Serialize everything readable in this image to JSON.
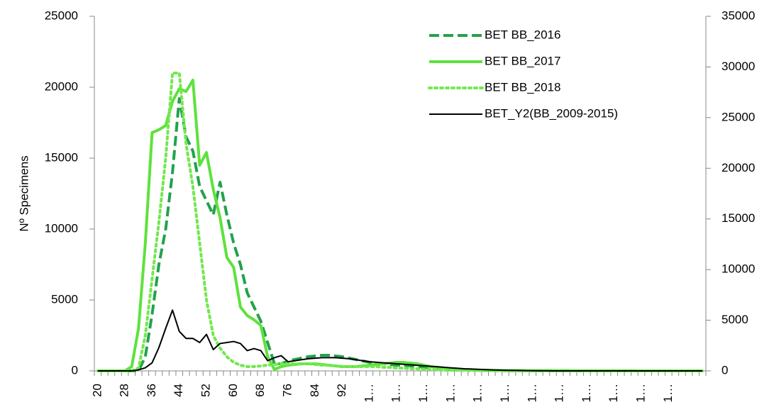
{
  "chart_data": {
    "type": "line",
    "y_label": "Nº Specimens",
    "categories": [
      "20",
      null,
      null,
      null,
      "28",
      null,
      null,
      null,
      "36",
      null,
      null,
      null,
      "44",
      null,
      null,
      null,
      "52",
      null,
      null,
      null,
      "60",
      null,
      null,
      null,
      "68",
      null,
      null,
      null,
      "76",
      null,
      null,
      null,
      "84",
      null,
      null,
      null,
      "92",
      null,
      null,
      null,
      "1…",
      null,
      null,
      null,
      "1…",
      null,
      null,
      null,
      "1…",
      null,
      null,
      null,
      "1…",
      null,
      null,
      null,
      "1…",
      null,
      null,
      null,
      "1…",
      null,
      null,
      null,
      "1…",
      null,
      null,
      null,
      "1…",
      null,
      null,
      null,
      "1…",
      null,
      null,
      null,
      "1…",
      null,
      null,
      null,
      "1…",
      null,
      null,
      null,
      "1…",
      null,
      null,
      null,
      null,
      null
    ],
    "ylim": [
      0,
      25000
    ],
    "yticks": [
      0,
      5000,
      10000,
      15000,
      20000,
      25000
    ],
    "y2lim": [
      0,
      35000
    ],
    "y2ticks": [
      0,
      5000,
      10000,
      15000,
      20000,
      25000,
      30000,
      35000
    ],
    "legend": "upper right",
    "series": [
      {
        "name": "BET BB_2016",
        "color": "#22a24c",
        "dash": "dashed",
        "width": 4,
        "values": [
          0,
          0,
          0,
          0,
          0,
          0,
          0,
          1000,
          4000,
          7500,
          10000,
          14000,
          19200,
          16500,
          15500,
          13000,
          12000,
          11000,
          13300,
          11000,
          9000,
          7500,
          5500,
          4500,
          3500,
          2000,
          500,
          500,
          700,
          800,
          900,
          1000,
          1050,
          1100,
          1100,
          1050,
          1000,
          900,
          800,
          700,
          600,
          550,
          500,
          450,
          400,
          400,
          350,
          300,
          250,
          200,
          180,
          150,
          120,
          100,
          80,
          60,
          50,
          40,
          30,
          20,
          10,
          10,
          10,
          10,
          10,
          10,
          10,
          10,
          10,
          10,
          0,
          0,
          0,
          0,
          0,
          0,
          0,
          0,
          0,
          0,
          0,
          0,
          0,
          0,
          0,
          0,
          0,
          0,
          0,
          0
        ]
      },
      {
        "name": "BET BB_2017",
        "color": "#5ee23c",
        "dash": "solid",
        "width": 4,
        "values": [
          0,
          0,
          0,
          0,
          0,
          300,
          3000,
          9000,
          16800,
          17000,
          17300,
          19000,
          19900,
          19700,
          20500,
          14500,
          15400,
          12800,
          10800,
          8000,
          7300,
          4500,
          3900,
          3600,
          3200,
          1000,
          100,
          300,
          400,
          450,
          500,
          500,
          500,
          450,
          400,
          350,
          300,
          300,
          300,
          350,
          400,
          450,
          500,
          550,
          600,
          600,
          550,
          500,
          400,
          300,
          250,
          200,
          150,
          120,
          100,
          80,
          60,
          50,
          40,
          30,
          20,
          20,
          20,
          20,
          20,
          20,
          20,
          20,
          20,
          20,
          10,
          10,
          10,
          10,
          10,
          10,
          10,
          10,
          10,
          10,
          0,
          0,
          0,
          0,
          0,
          0,
          0,
          0,
          0,
          0
        ]
      },
      {
        "name": "BET BB_2018",
        "color": "#72e84e",
        "dash": "dotted",
        "width": 4,
        "values": [
          0,
          0,
          0,
          0,
          0,
          0,
          200,
          2500,
          6500,
          10500,
          15000,
          21000,
          21000,
          16000,
          13000,
          9000,
          5000,
          2500,
          1600,
          1000,
          600,
          400,
          300,
          300,
          350,
          400,
          450,
          500,
          500,
          500,
          500,
          500,
          450,
          400,
          400,
          350,
          300,
          300,
          300,
          300,
          300,
          300,
          250,
          250,
          200,
          200,
          150,
          150,
          100,
          100,
          80,
          60,
          50,
          40,
          30,
          20,
          20,
          10,
          10,
          10,
          0,
          0,
          0,
          0,
          0,
          0,
          0,
          0,
          0,
          0,
          0,
          0,
          0,
          0,
          0,
          0,
          0,
          0,
          0,
          0,
          0,
          0,
          0,
          0,
          0,
          0,
          0,
          0,
          0,
          0
        ]
      },
      {
        "name": "BET_Y2(BB_2009-2015)",
        "color": "#000000",
        "dash": "solid",
        "width": 2,
        "axis": "y2",
        "values": [
          0,
          0,
          0,
          0,
          0,
          0,
          100,
          300,
          800,
          2300,
          4200,
          6000,
          3900,
          3200,
          3200,
          2800,
          3600,
          2100,
          2700,
          2800,
          2900,
          2700,
          2000,
          2200,
          2000,
          1000,
          1300,
          1500,
          900,
          1000,
          1100,
          1200,
          1250,
          1300,
          1300,
          1300,
          1250,
          1200,
          1100,
          1000,
          900,
          850,
          800,
          750,
          700,
          650,
          600,
          550,
          500,
          450,
          400,
          350,
          300,
          250,
          200,
          180,
          150,
          120,
          100,
          80,
          60,
          50,
          40,
          30,
          20,
          10,
          10,
          0,
          0,
          0,
          0,
          0,
          0,
          0,
          0,
          0,
          0,
          0,
          0,
          0,
          0,
          0,
          0,
          0,
          0,
          0,
          0,
          0,
          0,
          0
        ]
      }
    ]
  }
}
